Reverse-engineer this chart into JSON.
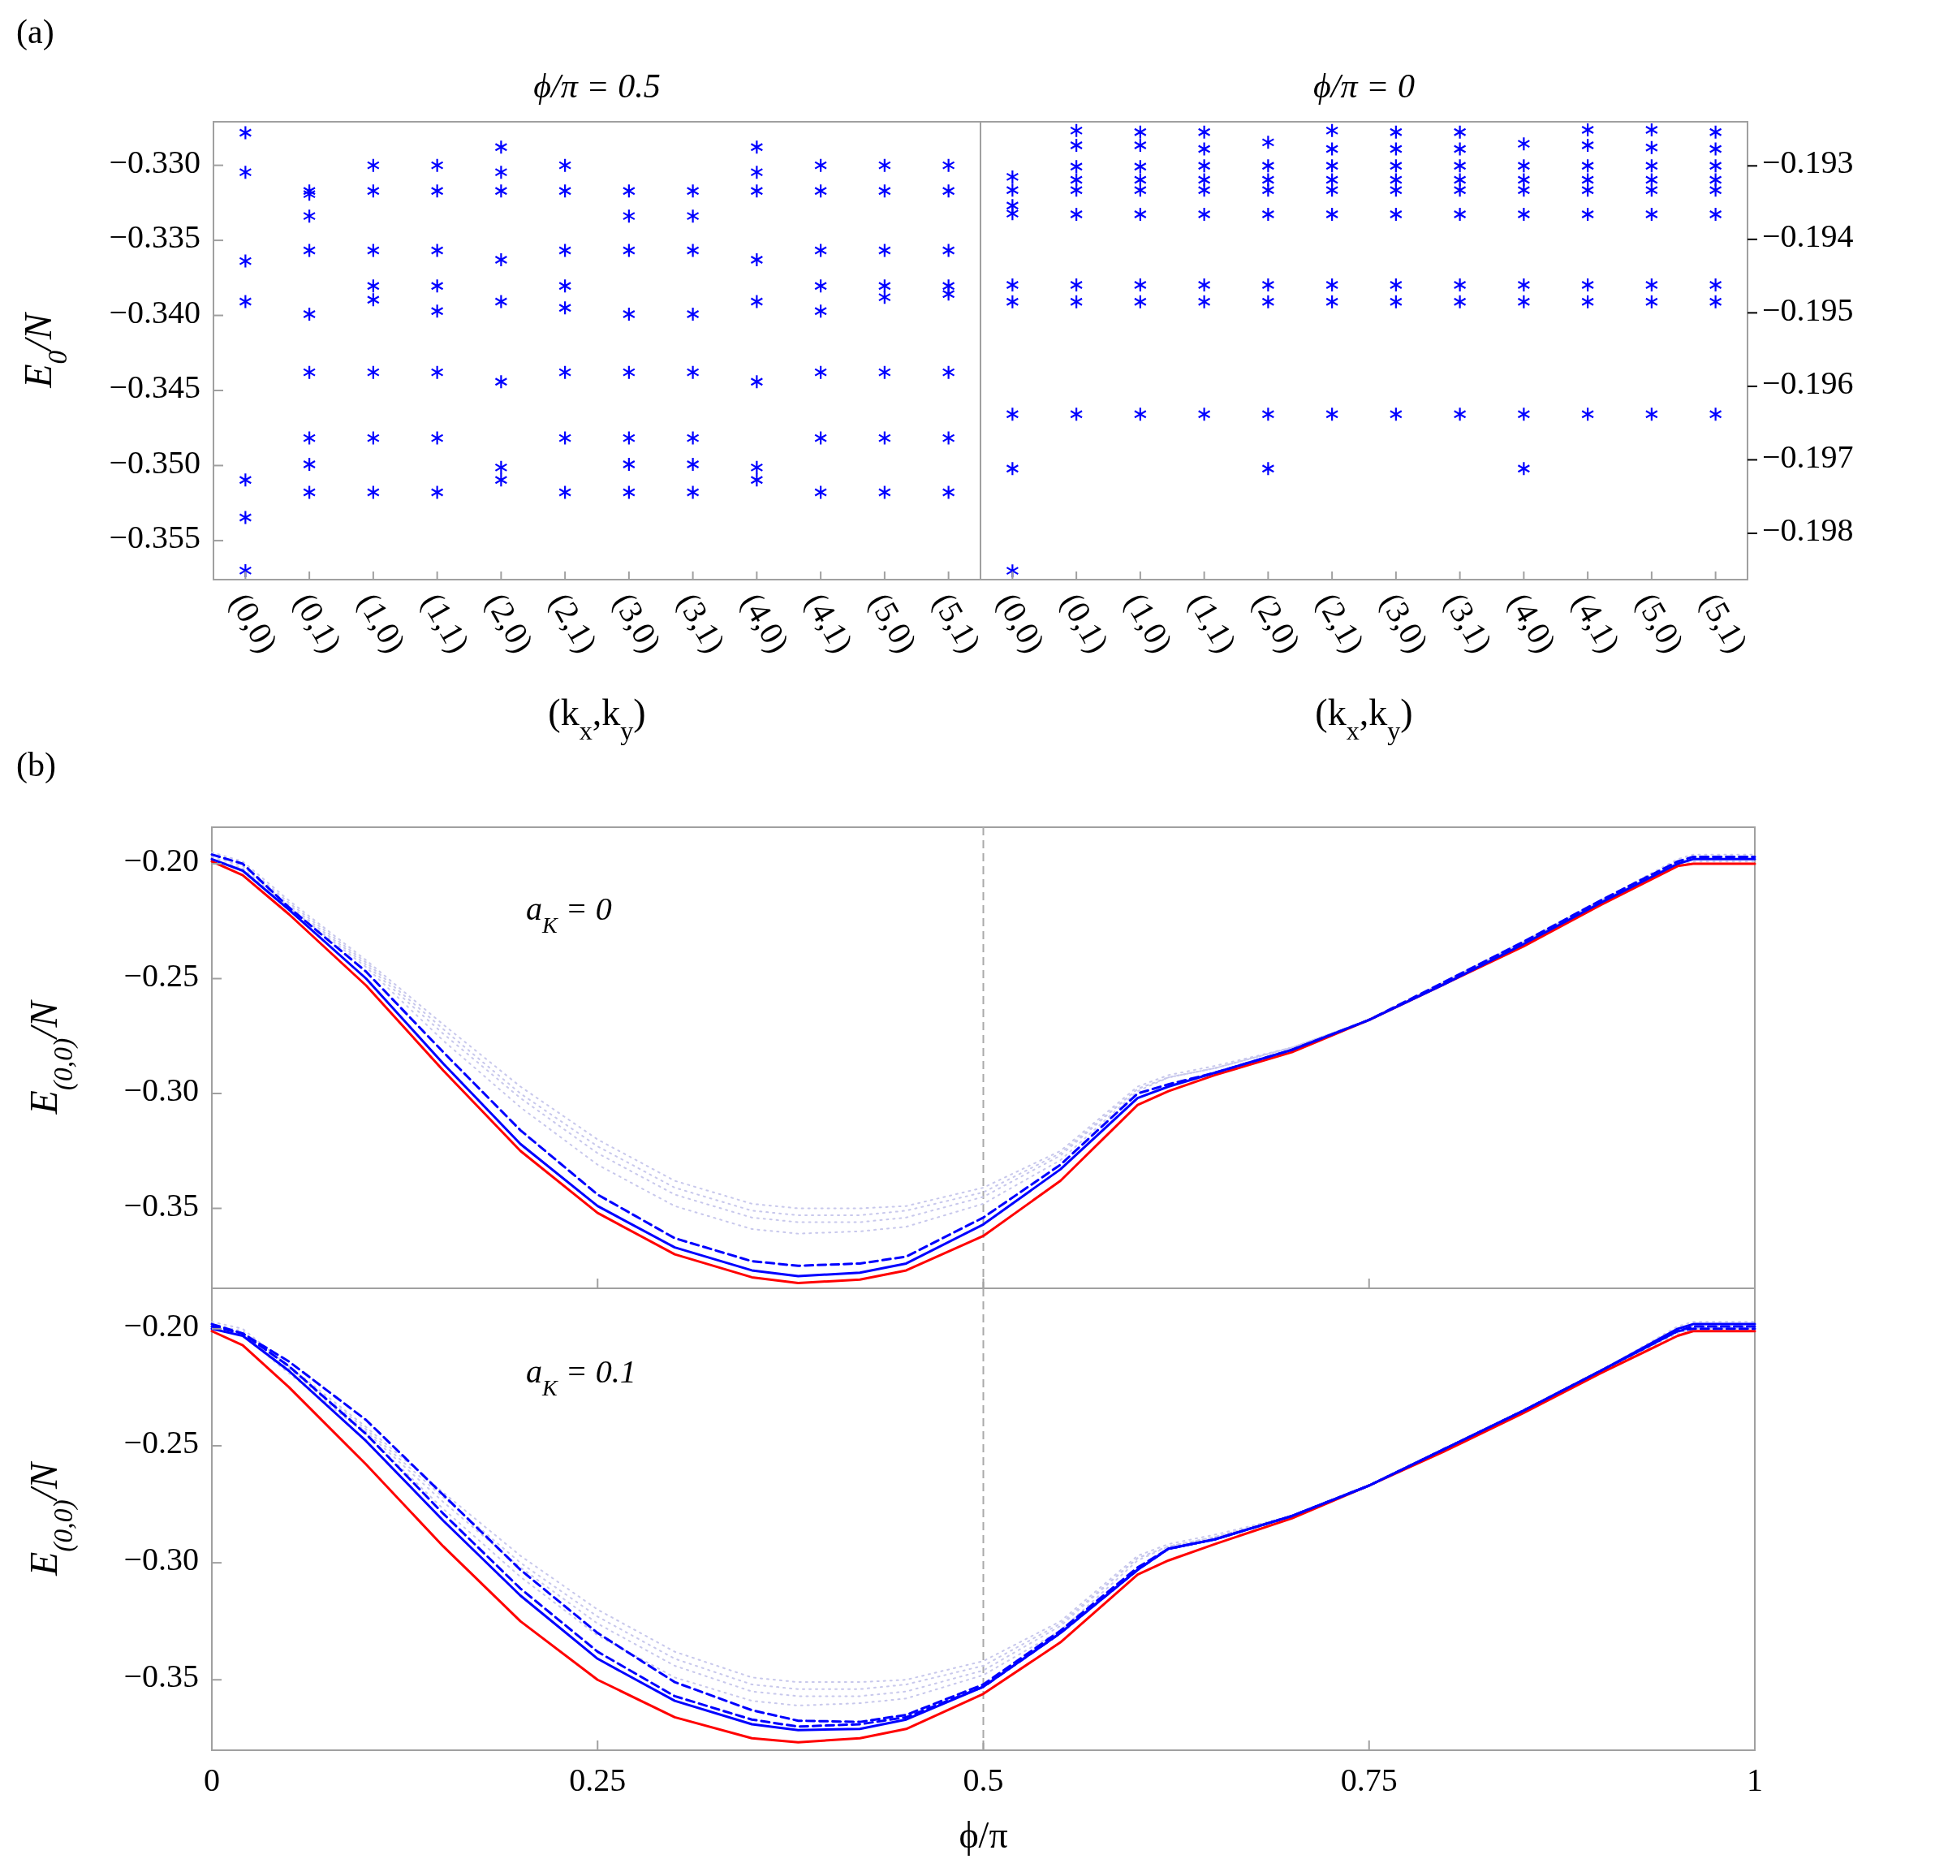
{
  "chart_data": [
    {
      "type": "scatter",
      "title": "ϕ/π = 0.5",
      "xlabel": "(k$_{x}$,k$_{y}$)",
      "ylabel": "E$_{0}$/N",
      "annotations": [
        "(a)"
      ],
      "marker": "cross",
      "categories": [
        "(0,0)",
        "(0,1)",
        "(1,0)",
        "(1,1)",
        "(2,0)",
        "(2,1)",
        "(3,0)",
        "(3,1)",
        "(4,0)",
        "(4,1)",
        "(5,0)",
        "(5,1)"
      ],
      "ylim": [
        -0.3576,
        -0.3271
      ],
      "yticks": [
        {
          "value": -0.33,
          "label": "−0.330"
        },
        {
          "value": -0.335,
          "label": "−0.335"
        },
        {
          "value": -0.34,
          "label": "−0.340"
        },
        {
          "value": -0.345,
          "label": "−0.345"
        },
        {
          "value": -0.35,
          "label": "−0.350"
        },
        {
          "value": -0.355,
          "label": "−0.355"
        }
      ],
      "series": [
        {
          "color": "#0000ff",
          "x": [
            "(0,0)",
            "(0,0)",
            "(0,0)",
            "(0,0)",
            "(0,0)",
            "(0,0)",
            "(0,0)",
            "(0,1)",
            "(0,1)",
            "(0,1)",
            "(0,1)",
            "(0,1)",
            "(0,1)",
            "(0,1)",
            "(0,1)",
            "(0,1)",
            "(1,0)",
            "(1,0)",
            "(1,0)",
            "(1,0)",
            "(1,0)",
            "(1,0)",
            "(1,0)",
            "(1,0)",
            "(1,1)",
            "(1,1)",
            "(1,1)",
            "(1,1)",
            "(1,1)",
            "(1,1)",
            "(1,1)",
            "(1,1)",
            "(2,0)",
            "(2,0)",
            "(2,0)",
            "(2,0)",
            "(2,0)",
            "(2,0)",
            "(2,0)",
            "(2,0)",
            "(2,1)",
            "(2,1)",
            "(2,1)",
            "(2,1)",
            "(2,1)",
            "(2,1)",
            "(2,1)",
            "(2,1)",
            "(3,0)",
            "(3,0)",
            "(3,0)",
            "(3,0)",
            "(3,0)",
            "(3,0)",
            "(3,0)",
            "(3,0)",
            "(3,1)",
            "(3,1)",
            "(3,1)",
            "(3,1)",
            "(3,1)",
            "(3,1)",
            "(3,1)",
            "(3,1)",
            "(4,0)",
            "(4,0)",
            "(4,0)",
            "(4,0)",
            "(4,0)",
            "(4,0)",
            "(4,0)",
            "(4,0)",
            "(4,1)",
            "(4,1)",
            "(4,1)",
            "(4,1)",
            "(4,1)",
            "(4,1)",
            "(4,1)",
            "(4,1)",
            "(5,0)",
            "(5,0)",
            "(5,0)",
            "(5,0)",
            "(5,0)",
            "(5,0)",
            "(5,0)",
            "(5,0)",
            "(5,1)",
            "(5,1)",
            "(5,1)",
            "(5,1)",
            "(5,1)",
            "(5,1)",
            "(5,1)",
            "(5,1)"
          ],
          "values": [
            -0.32783,
            -0.33046,
            -0.33638,
            -0.33908,
            -0.35096,
            -0.35346,
            -0.357,
            -0.33171,
            -0.33192,
            -0.33338,
            -0.33567,
            -0.33992,
            -0.34379,
            -0.34817,
            -0.34992,
            -0.35179,
            -0.33,
            -0.33171,
            -0.33567,
            -0.33804,
            -0.33896,
            -0.34379,
            -0.34817,
            -0.35179,
            -0.33,
            -0.33171,
            -0.33567,
            -0.33804,
            -0.33971,
            -0.34379,
            -0.34817,
            -0.35179,
            -0.32879,
            -0.33046,
            -0.33171,
            -0.33629,
            -0.33908,
            -0.34442,
            -0.35013,
            -0.35096,
            -0.33,
            -0.33171,
            -0.33567,
            -0.33804,
            -0.3395,
            -0.34379,
            -0.34817,
            -0.35179,
            -0.33171,
            -0.33338,
            -0.33567,
            -0.33992,
            -0.34379,
            -0.34817,
            -0.34992,
            -0.35179,
            -0.33171,
            -0.33338,
            -0.33567,
            -0.33992,
            -0.34379,
            -0.34817,
            -0.34992,
            -0.35179,
            -0.32879,
            -0.33046,
            -0.33171,
            -0.33629,
            -0.33908,
            -0.34442,
            -0.35013,
            -0.35096,
            -0.33,
            -0.33171,
            -0.33567,
            -0.33804,
            -0.33971,
            -0.34379,
            -0.34817,
            -0.35179,
            -0.33,
            -0.33171,
            -0.33567,
            -0.33804,
            -0.33879,
            -0.34379,
            -0.34817,
            -0.35179,
            -0.33,
            -0.33171,
            -0.33567,
            -0.33804,
            -0.33858,
            -0.34379,
            -0.34817,
            -0.35179
          ]
        }
      ]
    },
    {
      "type": "scatter",
      "title": "ϕ/π = 0",
      "xlabel": "(k$_{x}$,k$_{y}$)",
      "marker": "cross",
      "categories": [
        "(0,0)",
        "(0,1)",
        "(1,0)",
        "(1,1)",
        "(2,0)",
        "(2,1)",
        "(3,0)",
        "(3,1)",
        "(4,0)",
        "(4,1)",
        "(5,0)",
        "(5,1)"
      ],
      "y2lim": [
        -0.19863,
        -0.1924
      ],
      "y2ticks": [
        {
          "value": -0.193,
          "label": "−0.193"
        },
        {
          "value": -0.194,
          "label": "−0.194"
        },
        {
          "value": -0.195,
          "label": "−0.195"
        },
        {
          "value": -0.196,
          "label": "−0.196"
        },
        {
          "value": -0.197,
          "label": "−0.197"
        },
        {
          "value": -0.198,
          "label": "−0.198"
        }
      ],
      "series": [
        {
          "color": "#0000ff",
          "axis": "y2",
          "x": [
            "(0,0)",
            "(0,0)",
            "(0,0)",
            "(0,0)",
            "(0,0)",
            "(0,0)",
            "(0,0)",
            "(0,0)",
            "(0,0)",
            "(0,1)",
            "(0,1)",
            "(0,1)",
            "(0,1)",
            "(0,1)",
            "(0,1)",
            "(0,1)",
            "(0,1)",
            "(0,1)",
            "(1,0)",
            "(1,0)",
            "(1,0)",
            "(1,0)",
            "(1,0)",
            "(1,0)",
            "(1,0)",
            "(1,0)",
            "(1,0)",
            "(1,1)",
            "(1,1)",
            "(1,1)",
            "(1,1)",
            "(1,1)",
            "(1,1)",
            "(1,1)",
            "(1,1)",
            "(1,1)",
            "(2,0)",
            "(2,0)",
            "(2,0)",
            "(2,0)",
            "(2,0)",
            "(2,0)",
            "(2,0)",
            "(2,0)",
            "(2,0)",
            "(2,1)",
            "(2,1)",
            "(2,1)",
            "(2,1)",
            "(2,1)",
            "(2,1)",
            "(2,1)",
            "(2,1)",
            "(2,1)",
            "(3,0)",
            "(3,0)",
            "(3,0)",
            "(3,0)",
            "(3,0)",
            "(3,0)",
            "(3,0)",
            "(3,0)",
            "(3,0)",
            "(3,1)",
            "(3,1)",
            "(3,1)",
            "(3,1)",
            "(3,1)",
            "(3,1)",
            "(3,1)",
            "(3,1)",
            "(3,1)",
            "(4,0)",
            "(4,0)",
            "(4,0)",
            "(4,0)",
            "(4,0)",
            "(4,0)",
            "(4,0)",
            "(4,0)",
            "(4,0)",
            "(4,1)",
            "(4,1)",
            "(4,1)",
            "(4,1)",
            "(4,1)",
            "(4,1)",
            "(4,1)",
            "(4,1)",
            "(4,1)",
            "(5,0)",
            "(5,0)",
            "(5,0)",
            "(5,0)",
            "(5,0)",
            "(5,0)",
            "(5,0)",
            "(5,0)",
            "(5,0)",
            "(5,1)",
            "(5,1)",
            "(5,1)",
            "(5,1)",
            "(5,1)",
            "(5,1)",
            "(5,1)",
            "(5,1)",
            "(5,1)"
          ],
          "values": [
            -0.19315,
            -0.19333,
            -0.19354,
            -0.19365,
            -0.19462,
            -0.19485,
            -0.19638,
            -0.19712,
            -0.19851,
            -0.19252,
            -0.19272,
            -0.19301,
            -0.19319,
            -0.19333,
            -0.19366,
            -0.19462,
            -0.19485,
            -0.19638,
            -0.19254,
            -0.19272,
            -0.19301,
            -0.19319,
            -0.19333,
            -0.19366,
            -0.19462,
            -0.19485,
            -0.19638,
            -0.19254,
            -0.19277,
            -0.193,
            -0.19319,
            -0.19333,
            -0.19366,
            -0.19462,
            -0.19485,
            -0.19638,
            -0.19268,
            -0.193,
            -0.19319,
            -0.19333,
            -0.19366,
            -0.19462,
            -0.19485,
            -0.19638,
            -0.19712,
            -0.19252,
            -0.19277,
            -0.193,
            -0.19319,
            -0.19333,
            -0.19366,
            -0.19462,
            -0.19485,
            -0.19638,
            -0.19254,
            -0.19277,
            -0.193,
            -0.19319,
            -0.19333,
            -0.19366,
            -0.19462,
            -0.19485,
            -0.19638,
            -0.19254,
            -0.19277,
            -0.193,
            -0.19319,
            -0.19333,
            -0.19366,
            -0.19462,
            -0.19485,
            -0.19638,
            -0.1927,
            -0.193,
            -0.19319,
            -0.19333,
            -0.19366,
            -0.19462,
            -0.19485,
            -0.19638,
            -0.19712,
            -0.19251,
            -0.19272,
            -0.193,
            -0.19319,
            -0.19333,
            -0.19366,
            -0.19462,
            -0.19485,
            -0.19638,
            -0.19251,
            -0.19275,
            -0.193,
            -0.19319,
            -0.19333,
            -0.19366,
            -0.19462,
            -0.19485,
            -0.19638,
            -0.19254,
            -0.19277,
            -0.193,
            -0.19319,
            -0.19333,
            -0.19366,
            -0.19462,
            -0.19485,
            -0.19638
          ]
        }
      ]
    },
    {
      "type": "line",
      "ylabel": "E$_{(0,0)}$/N",
      "annotations": [
        "(b)",
        "a$_{K}$ = 0"
      ],
      "tick_labels": "y",
      "x": [
        0,
        0.02,
        0.05,
        0.1,
        0.15,
        0.2,
        0.25,
        0.3,
        0.35,
        0.38,
        0.42,
        0.45,
        0.5,
        0.55,
        0.6,
        0.62,
        0.65,
        0.7,
        0.75,
        0.8,
        0.85,
        0.9,
        0.95,
        0.96,
        1
      ],
      "xlim": [
        0,
        1
      ],
      "xticks": [
        0,
        0.25,
        0.5,
        0.75,
        1
      ],
      "ylim": [
        -0.3848,
        -0.1841
      ],
      "yticks": [
        {
          "value": -0.2,
          "label": "−0.20"
        },
        {
          "value": -0.25,
          "label": "−0.25"
        },
        {
          "value": -0.3,
          "label": "−0.30"
        },
        {
          "value": -0.35,
          "label": "−0.35"
        }
      ],
      "ref_lines": [
        {
          "axis": "x",
          "value": 0.5,
          "color": "#aaaaaa",
          "line_style": "dashed"
        }
      ],
      "series": [
        {
          "color": "#c8c8ec",
          "line_style": "dotted",
          "values": [
            -0.195,
            -0.199,
            -0.216,
            -0.242,
            -0.27,
            -0.297,
            -0.32,
            -0.338,
            -0.348,
            -0.35,
            -0.35,
            -0.349,
            -0.341,
            -0.325,
            -0.297,
            -0.292,
            -0.288,
            -0.28,
            -0.268,
            -0.251,
            -0.234,
            -0.216,
            -0.198,
            -0.196,
            -0.196
          ]
        },
        {
          "color": "#c8c8ec",
          "line_style": "dotted",
          "values": [
            -0.196,
            -0.2,
            -0.217,
            -0.243,
            -0.272,
            -0.3,
            -0.323,
            -0.341,
            -0.351,
            -0.353,
            -0.353,
            -0.351,
            -0.343,
            -0.326,
            -0.298,
            -0.293,
            -0.289,
            -0.28,
            -0.268,
            -0.251,
            -0.234,
            -0.216,
            -0.199,
            -0.197,
            -0.197
          ]
        },
        {
          "color": "#c8c8ec",
          "line_style": "dotted",
          "values": [
            -0.197,
            -0.201,
            -0.218,
            -0.244,
            -0.274,
            -0.302,
            -0.326,
            -0.344,
            -0.354,
            -0.356,
            -0.356,
            -0.354,
            -0.345,
            -0.327,
            -0.298,
            -0.293,
            -0.289,
            -0.28,
            -0.268,
            -0.251,
            -0.234,
            -0.216,
            -0.2,
            -0.198,
            -0.198
          ]
        },
        {
          "color": "#c8c8ec",
          "line_style": "dotted",
          "values": [
            -0.198,
            -0.202,
            -0.219,
            -0.245,
            -0.277,
            -0.306,
            -0.331,
            -0.349,
            -0.359,
            -0.361,
            -0.36,
            -0.358,
            -0.348,
            -0.329,
            -0.299,
            -0.293,
            -0.289,
            -0.28,
            -0.268,
            -0.251,
            -0.234,
            -0.216,
            -0.201,
            -0.199,
            -0.199
          ]
        },
        {
          "color": "#ff0000",
          "line_style": "solid",
          "values": [
            -0.199,
            -0.205,
            -0.222,
            -0.253,
            -0.29,
            -0.325,
            -0.352,
            -0.37,
            -0.38,
            -0.3825,
            -0.381,
            -0.377,
            -0.362,
            -0.338,
            -0.305,
            -0.299,
            -0.292,
            -0.282,
            -0.268,
            -0.252,
            -0.236,
            -0.218,
            -0.201,
            -0.2,
            -0.2
          ]
        },
        {
          "color": "#0000ff",
          "line_style": "solid",
          "values": [
            -0.198,
            -0.203,
            -0.22,
            -0.25,
            -0.287,
            -0.322,
            -0.349,
            -0.367,
            -0.377,
            -0.3795,
            -0.378,
            -0.374,
            -0.357,
            -0.333,
            -0.302,
            -0.297,
            -0.291,
            -0.281,
            -0.268,
            -0.252,
            -0.235,
            -0.217,
            -0.2,
            -0.198,
            -0.198
          ]
        },
        {
          "color": "#0000ff",
          "line_style": "dashed",
          "values": [
            -0.196,
            -0.2,
            -0.219,
            -0.247,
            -0.282,
            -0.316,
            -0.344,
            -0.363,
            -0.373,
            -0.375,
            -0.374,
            -0.371,
            -0.354,
            -0.331,
            -0.3,
            -0.296,
            -0.291,
            -0.281,
            -0.268,
            -0.251,
            -0.234,
            -0.216,
            -0.199,
            -0.197,
            -0.197
          ]
        }
      ]
    },
    {
      "type": "line",
      "xlabel": "ϕ/π",
      "ylabel": "E$_{(0,0)}$/N",
      "annotations": [
        "a$_{K}$ = 0.1"
      ],
      "x": [
        0,
        0.02,
        0.05,
        0.1,
        0.15,
        0.2,
        0.25,
        0.3,
        0.35,
        0.38,
        0.42,
        0.45,
        0.5,
        0.55,
        0.6,
        0.62,
        0.65,
        0.7,
        0.75,
        0.8,
        0.85,
        0.9,
        0.95,
        0.96,
        1
      ],
      "xlim": [
        0,
        1
      ],
      "xticks": [
        0,
        0.25,
        0.5,
        0.75,
        1
      ],
      "ylim": [
        -0.3801,
        -0.1827
      ],
      "yticks": [
        {
          "value": -0.2,
          "label": "−0.20"
        },
        {
          "value": -0.25,
          "label": "−0.25"
        },
        {
          "value": -0.3,
          "label": "−0.30"
        },
        {
          "value": -0.35,
          "label": "−0.35"
        }
      ],
      "ref_lines": [
        {
          "axis": "x",
          "value": 0.5,
          "color": "#aaaaaa",
          "line_style": "dashed"
        }
      ],
      "series": [
        {
          "color": "#c8c8ec",
          "line_style": "dotted",
          "values": [
            -0.197,
            -0.2,
            -0.216,
            -0.242,
            -0.27,
            -0.297,
            -0.32,
            -0.338,
            -0.349,
            -0.351,
            -0.351,
            -0.35,
            -0.342,
            -0.325,
            -0.297,
            -0.292,
            -0.288,
            -0.28,
            -0.267,
            -0.251,
            -0.235,
            -0.218,
            -0.199,
            -0.197,
            -0.197
          ]
        },
        {
          "color": "#c8c8ec",
          "line_style": "dotted",
          "values": [
            -0.198,
            -0.201,
            -0.217,
            -0.243,
            -0.272,
            -0.3,
            -0.323,
            -0.341,
            -0.352,
            -0.354,
            -0.354,
            -0.352,
            -0.344,
            -0.326,
            -0.298,
            -0.293,
            -0.289,
            -0.28,
            -0.267,
            -0.251,
            -0.235,
            -0.218,
            -0.2,
            -0.198,
            -0.198
          ]
        },
        {
          "color": "#c8c8ec",
          "line_style": "dotted",
          "values": [
            -0.199,
            -0.202,
            -0.218,
            -0.244,
            -0.274,
            -0.302,
            -0.326,
            -0.344,
            -0.355,
            -0.357,
            -0.357,
            -0.355,
            -0.346,
            -0.327,
            -0.298,
            -0.293,
            -0.289,
            -0.28,
            -0.267,
            -0.251,
            -0.235,
            -0.218,
            -0.201,
            -0.199,
            -0.199
          ]
        },
        {
          "color": "#c8c8ec",
          "line_style": "dotted",
          "values": [
            -0.2,
            -0.203,
            -0.219,
            -0.245,
            -0.277,
            -0.306,
            -0.331,
            -0.349,
            -0.359,
            -0.361,
            -0.36,
            -0.358,
            -0.348,
            -0.329,
            -0.299,
            -0.293,
            -0.289,
            -0.28,
            -0.267,
            -0.251,
            -0.235,
            -0.218,
            -0.202,
            -0.2,
            -0.2
          ]
        },
        {
          "color": "#ff0000",
          "line_style": "solid",
          "values": [
            -0.201,
            -0.207,
            -0.225,
            -0.258,
            -0.293,
            -0.325,
            -0.35,
            -0.366,
            -0.375,
            -0.3767,
            -0.375,
            -0.371,
            -0.356,
            -0.334,
            -0.305,
            -0.299,
            -0.292,
            -0.281,
            -0.267,
            -0.252,
            -0.236,
            -0.219,
            -0.203,
            -0.201,
            -0.201
          ]
        },
        {
          "color": "#0000ff",
          "line_style": "solid",
          "values": [
            -0.2,
            -0.203,
            -0.218,
            -0.248,
            -0.282,
            -0.314,
            -0.341,
            -0.359,
            -0.369,
            -0.3715,
            -0.371,
            -0.367,
            -0.353,
            -0.33,
            -0.303,
            -0.294,
            -0.29,
            -0.28,
            -0.267,
            -0.251,
            -0.235,
            -0.218,
            -0.2,
            -0.198,
            -0.198
          ]
        },
        {
          "color": "#0000ff",
          "line_style": "dashed",
          "values": [
            -0.198,
            -0.202,
            -0.214,
            -0.239,
            -0.271,
            -0.303,
            -0.33,
            -0.351,
            -0.363,
            -0.3675,
            -0.368,
            -0.365,
            -0.352,
            -0.329,
            -0.302,
            -0.294,
            -0.29,
            -0.28,
            -0.267,
            -0.251,
            -0.235,
            -0.218,
            -0.201,
            -0.199,
            -0.199
          ]
        },
        {
          "color": "#0000ff",
          "line_style": "dashed",
          "values": [
            -0.199,
            -0.202,
            -0.216,
            -0.245,
            -0.279,
            -0.311,
            -0.338,
            -0.357,
            -0.367,
            -0.37,
            -0.369,
            -0.366,
            -0.353,
            -0.33,
            -0.303,
            -0.294,
            -0.29,
            -0.28,
            -0.267,
            -0.251,
            -0.235,
            -0.218,
            -0.201,
            -0.2,
            -0.2
          ]
        }
      ]
    }
  ]
}
